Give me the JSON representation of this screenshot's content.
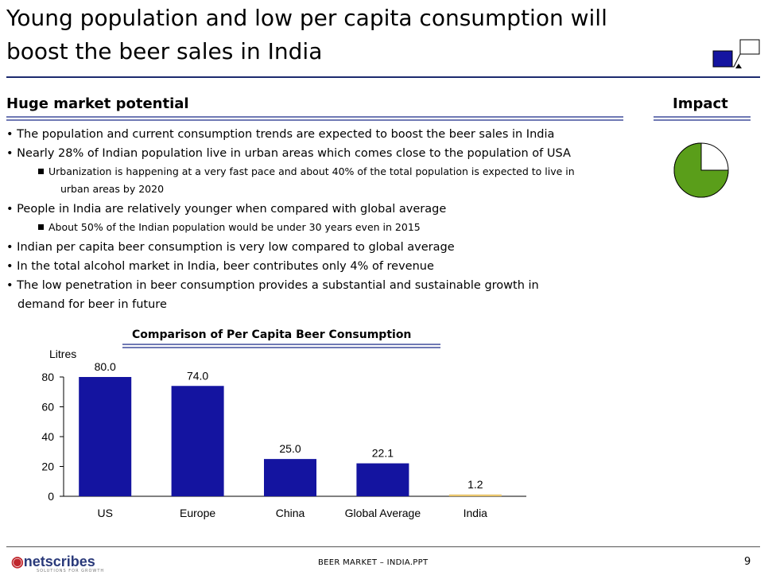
{
  "slide": {
    "title_line1": "Young population and low per capita consumption will",
    "title_line2": "boost the beer sales in India",
    "section_title": "Huge market potential",
    "impact_title": "Impact",
    "impact_level": 0.75,
    "bullets": [
      "The population and current consumption trends are expected to boost the beer sales in India",
      "Nearly 28% of Indian population live in urban areas which comes close to the population of USA",
      "Urbanization is happening at a very fast pace and about 40% of the total population is expected to live in",
      "urban areas by 2020",
      "People in India are relatively younger when compared with global average",
      "About 50% of the Indian population would be under 30 years even in 2015",
      "Indian per capita beer consumption is very low compared to global average",
      "In the total alcohol market in India, beer contributes only 4% of revenue",
      "The low penetration in beer consumption provides a substantial and sustainable growth in",
      "demand for beer in future"
    ],
    "bullet_glyph": "•",
    "footer_text": "BEER MARKET – INDIA.PPT",
    "page_number": "9",
    "logo_text": "netscribes",
    "logo_sub": "SOLUTIONS FOR GROWTH",
    "colors": {
      "bar": "#1414a0",
      "india_bar": "#e8c46a",
      "accent": "#1c2a6e",
      "impact_fill": "#5a9e1a"
    }
  },
  "chart_data": {
    "type": "bar",
    "title": "Comparison of  Per Capita Beer Consumption",
    "ylabel": "Litres",
    "categories": [
      "US",
      "Europe",
      "China",
      "Global Average",
      "India"
    ],
    "values": [
      80.0,
      74.0,
      25.0,
      22.1,
      1.2
    ],
    "value_labels": [
      "80.0",
      "74.0",
      "25.0",
      "22.1",
      "1.2"
    ],
    "yticks": [
      "0",
      "20",
      "40",
      "60",
      "80"
    ],
    "ytick_values": [
      0,
      20,
      40,
      60,
      80
    ],
    "ylim": [
      0,
      80
    ],
    "grid": false,
    "legend": "none"
  }
}
